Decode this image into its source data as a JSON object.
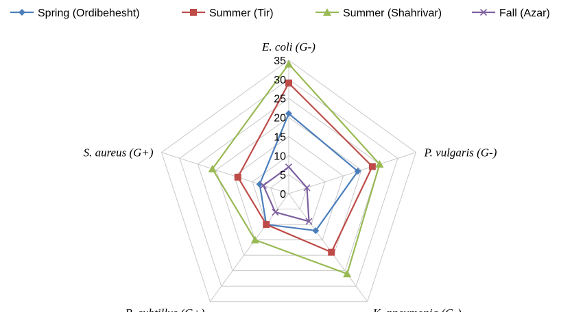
{
  "chart_data": {
    "type": "radar",
    "axes": [
      "E. coli (G-)",
      "P. vulgaris (G-)",
      "K. pneumonia (G-)",
      "B. subtillus (G+)",
      "S. aureus (G+)"
    ],
    "ticks": [
      "0",
      "5",
      "10",
      "15",
      "20",
      "25",
      "30",
      "35"
    ],
    "rlim": [
      0,
      35
    ],
    "grid": true,
    "legend_position": "top",
    "series": [
      {
        "name": "Spring (Ordibehesht)",
        "values": [
          21,
          19,
          12,
          10,
          8
        ],
        "color": "#4a7ebb",
        "marker": "diamond"
      },
      {
        "name": "Summer (Tir)",
        "values": [
          29,
          23,
          19,
          10,
          14
        ],
        "color": "#be4b48",
        "marker": "square"
      },
      {
        "name": "Summer (Shahrivar)",
        "values": [
          34,
          25,
          26,
          15,
          21
        ],
        "color": "#98b954",
        "marker": "triangle"
      },
      {
        "name": "Fall (Azar)",
        "values": [
          7,
          5,
          9,
          6,
          7
        ],
        "color": "#7d60a0",
        "marker": "x"
      }
    ]
  }
}
